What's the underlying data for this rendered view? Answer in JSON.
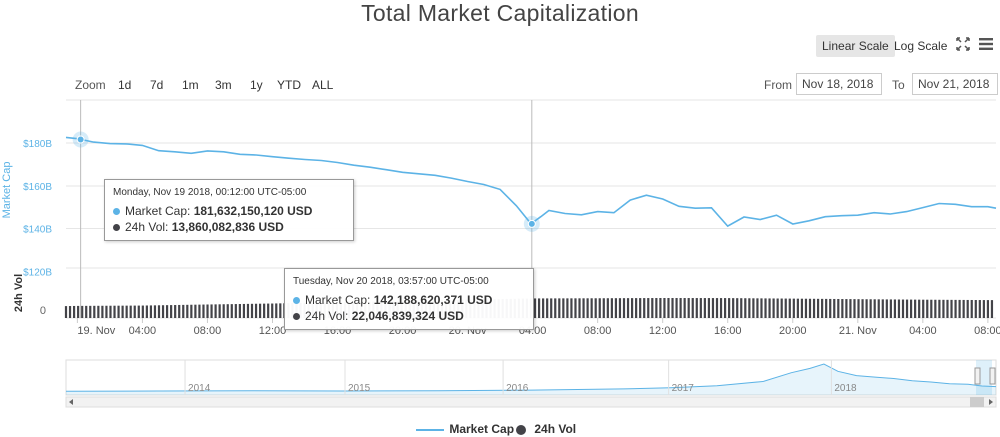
{
  "title": "Total Market Capitalization",
  "controls": {
    "linear_scale": "Linear Scale",
    "log_scale": "Log Scale",
    "zoom_label": "Zoom",
    "zoom_buttons": [
      "1d",
      "7d",
      "1m",
      "3m",
      "1y",
      "YTD",
      "ALL"
    ],
    "from_label": "From",
    "from_value": "Nov 18, 2018",
    "to_label": "To",
    "to_value": "Nov 21, 2018"
  },
  "colors": {
    "market_cap": "#5cb3e6",
    "volume": "#434348",
    "grid": "#e6e6e6"
  },
  "icons": {
    "fullscreen": "fullscreen-icon",
    "menu": "menu-icon"
  },
  "chart_data": {
    "type": "line",
    "y_axis_label": "Market Cap",
    "y_ticks": [
      "$180B",
      "$160B",
      "$140B",
      "$120B"
    ],
    "ylim": [
      120,
      190
    ],
    "vol_axis_label": "24h Vol",
    "vol_tick": "0",
    "x_ticks": [
      "19. Nov",
      "04:00",
      "08:00",
      "12:00",
      "16:00",
      "20:00",
      "20. Nov",
      "04:00",
      "08:00",
      "12:00",
      "16:00",
      "20:00",
      "21. Nov",
      "04:00",
      "08:00"
    ],
    "x_hours": [
      0,
      4,
      8,
      12,
      16,
      20,
      24,
      28,
      32,
      36,
      40,
      44,
      48,
      52,
      56
    ],
    "x_range_hours": [
      -0.7,
      56.5
    ],
    "series": [
      {
        "name": "Market Cap",
        "unit": "USD billions",
        "points": [
          [
            -0.7,
            182.6
          ],
          [
            0,
            182.0
          ],
          [
            1,
            180.4
          ],
          [
            2,
            179.7
          ],
          [
            3,
            179.6
          ],
          [
            4,
            178.9
          ],
          [
            5,
            176.4
          ],
          [
            6,
            175.9
          ],
          [
            7,
            175.2
          ],
          [
            8,
            176.3
          ],
          [
            9,
            175.9
          ],
          [
            10,
            174.7
          ],
          [
            11,
            174.4
          ],
          [
            12,
            173.6
          ],
          [
            13,
            172.9
          ],
          [
            14,
            172.3
          ],
          [
            15,
            171.8
          ],
          [
            16,
            170.9
          ],
          [
            17,
            169.6
          ],
          [
            18,
            168.7
          ],
          [
            19,
            167.5
          ],
          [
            20,
            166.3
          ],
          [
            21,
            165.6
          ],
          [
            22,
            164.9
          ],
          [
            23,
            163.6
          ],
          [
            24,
            162.0
          ],
          [
            25,
            160.6
          ],
          [
            26,
            158.3
          ],
          [
            27,
            150.6
          ],
          [
            27.9,
            142.2
          ],
          [
            28.5,
            145.5
          ],
          [
            29,
            148.4
          ],
          [
            30,
            147.0
          ],
          [
            31,
            146.4
          ],
          [
            32,
            147.9
          ],
          [
            33,
            147.4
          ],
          [
            34,
            153.3
          ],
          [
            35,
            155.6
          ],
          [
            36,
            153.8
          ],
          [
            37,
            150.4
          ],
          [
            38,
            149.5
          ],
          [
            39,
            149.7
          ],
          [
            40,
            141.1
          ],
          [
            41,
            145.4
          ],
          [
            42,
            144.2
          ],
          [
            43,
            146.2
          ],
          [
            44,
            142.1
          ],
          [
            45,
            143.6
          ],
          [
            46,
            145.5
          ],
          [
            47,
            146.0
          ],
          [
            48,
            146.2
          ],
          [
            49,
            147.4
          ],
          [
            50,
            146.8
          ],
          [
            51,
            147.9
          ],
          [
            52,
            149.8
          ],
          [
            53,
            151.7
          ],
          [
            54,
            151.3
          ],
          [
            55,
            150.2
          ],
          [
            56,
            150.2
          ],
          [
            56.5,
            149.5
          ]
        ]
      },
      {
        "name": "24h Vol",
        "unit": "USD billions",
        "points": [
          [
            -0.7,
            13.4
          ],
          [
            0,
            13.6
          ],
          [
            4,
            14.0
          ],
          [
            8,
            15.2
          ],
          [
            12,
            16.3
          ],
          [
            16,
            17.8
          ],
          [
            20,
            18.9
          ],
          [
            24,
            20.6
          ],
          [
            27.9,
            22.0
          ],
          [
            32,
            22.2
          ],
          [
            36,
            22.5
          ],
          [
            40,
            22.4
          ],
          [
            44,
            21.8
          ],
          [
            48,
            21.2
          ],
          [
            52,
            20.6
          ],
          [
            56.5,
            20.1
          ]
        ]
      }
    ],
    "tooltips": [
      {
        "header": "Monday, Nov 19 2018, 00:12:00 UTC-05:00",
        "market_cap": "181,632,150,120 USD",
        "volume": "13,860,082,836 USD",
        "mc_label": "Market Cap:",
        "vol_label": "24h Vol:"
      },
      {
        "header": "Tuesday, Nov 20 2018, 03:57:00 UTC-05:00",
        "market_cap": "142,188,620,371 USD",
        "volume": "22,046,839,324 USD",
        "mc_label": "Market Cap:",
        "vol_label": "24h Vol:"
      }
    ],
    "navigator": {
      "years": [
        "2014",
        "2015",
        "2016",
        "2017",
        "2018"
      ],
      "year_fraction_start": [
        0.128,
        0.3,
        0.47,
        0.648,
        0.823
      ],
      "points": [
        [
          0,
          0.06
        ],
        [
          0.1,
          0.07
        ],
        [
          0.2,
          0.08
        ],
        [
          0.3,
          0.07
        ],
        [
          0.4,
          0.08
        ],
        [
          0.5,
          0.1
        ],
        [
          0.6,
          0.14
        ],
        [
          0.65,
          0.18
        ],
        [
          0.7,
          0.25
        ],
        [
          0.75,
          0.4
        ],
        [
          0.78,
          0.7
        ],
        [
          0.8,
          0.85
        ],
        [
          0.815,
          1.0
        ],
        [
          0.83,
          0.75
        ],
        [
          0.85,
          0.6
        ],
        [
          0.87,
          0.55
        ],
        [
          0.89,
          0.5
        ],
        [
          0.91,
          0.42
        ],
        [
          0.93,
          0.38
        ],
        [
          0.95,
          0.32
        ],
        [
          0.97,
          0.3
        ],
        [
          0.985,
          0.24
        ],
        [
          1,
          0.22
        ]
      ]
    },
    "legend": [
      "Market Cap",
      "24h Vol"
    ]
  }
}
